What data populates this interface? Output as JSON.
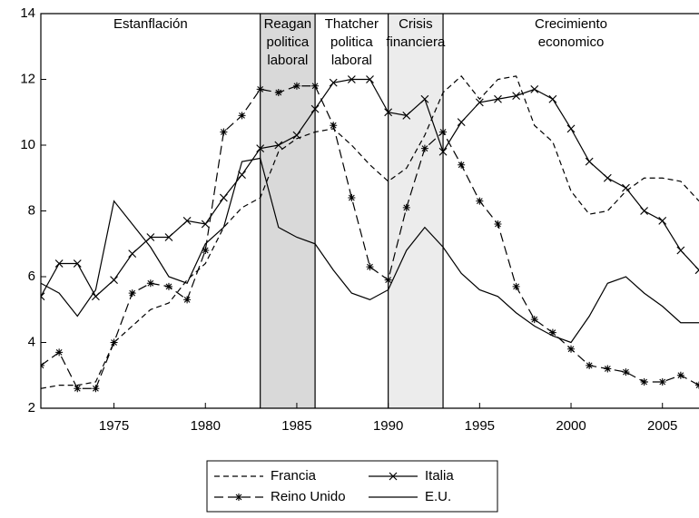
{
  "chart_data": {
    "type": "line",
    "x": [
      1971,
      1972,
      1973,
      1974,
      1975,
      1976,
      1977,
      1978,
      1979,
      1980,
      1981,
      1982,
      1983,
      1984,
      1985,
      1986,
      1987,
      1988,
      1989,
      1990,
      1991,
      1992,
      1993,
      1994,
      1995,
      1996,
      1997,
      1998,
      1999,
      2000,
      2001,
      2002,
      2003,
      2004,
      2005,
      2006,
      2007
    ],
    "series": [
      {
        "name": "Francia",
        "color": "#000000",
        "dash": "6,4",
        "marker": "none",
        "values": [
          2.6,
          2.7,
          2.7,
          2.8,
          4.0,
          4.5,
          5.0,
          5.2,
          5.9,
          6.4,
          7.5,
          8.1,
          8.4,
          9.8,
          10.2,
          10.4,
          10.5,
          10.0,
          9.4,
          8.9,
          9.3,
          10.3,
          11.6,
          12.1,
          11.4,
          12.0,
          12.1,
          10.6,
          10.1,
          8.6,
          7.9,
          8.0,
          8.6,
          9.0,
          9.0,
          8.9,
          8.3
        ]
      },
      {
        "name": "Italia",
        "color": "#000000",
        "dash": "none",
        "marker": "x",
        "values": [
          5.4,
          6.4,
          6.4,
          5.4,
          5.9,
          6.7,
          7.2,
          7.2,
          7.7,
          7.6,
          8.4,
          9.1,
          9.9,
          10.0,
          10.3,
          11.1,
          11.9,
          12.0,
          12.0,
          11.0,
          10.9,
          11.4,
          9.8,
          10.7,
          11.3,
          11.4,
          11.5,
          11.7,
          11.4,
          10.5,
          9.5,
          9.0,
          8.7,
          8.0,
          7.7,
          6.8,
          6.2
        ]
      },
      {
        "name": "Reino Unido",
        "color": "#000000",
        "dash": "10,5",
        "marker": "star",
        "values": [
          3.3,
          3.7,
          2.6,
          2.6,
          4.0,
          5.5,
          5.8,
          5.7,
          5.3,
          6.8,
          10.4,
          10.9,
          11.7,
          11.6,
          11.8,
          11.8,
          10.6,
          8.4,
          6.3,
          5.9,
          8.1,
          9.9,
          10.4,
          9.4,
          8.3,
          7.6,
          5.7,
          4.7,
          4.3,
          3.8,
          3.3,
          3.2,
          3.1,
          2.8,
          2.8,
          3.0,
          2.7
        ]
      },
      {
        "name": "E.U.",
        "color": "#000000",
        "dash": "none",
        "marker": "none",
        "values": [
          5.8,
          5.5,
          4.8,
          5.6,
          8.3,
          7.6,
          6.9,
          6.0,
          5.8,
          7.0,
          7.5,
          9.5,
          9.6,
          7.5,
          7.2,
          7.0,
          6.2,
          5.5,
          5.3,
          5.6,
          6.8,
          7.5,
          6.9,
          6.1,
          5.6,
          5.4,
          4.9,
          4.5,
          4.2,
          4.0,
          4.8,
          5.8,
          6.0,
          5.5,
          5.1,
          4.6,
          4.6
        ]
      }
    ],
    "xlim": [
      1971,
      2007
    ],
    "xticks": [
      1975,
      1980,
      1985,
      1990,
      1995,
      2000,
      2005
    ],
    "ylim": [
      2,
      14
    ],
    "yticks": [
      2,
      4,
      6,
      8,
      10,
      12,
      14
    ],
    "period_bounds": [
      1983,
      1986,
      1990,
      1993
    ],
    "periods": [
      {
        "label": [
          "Estanflación"
        ]
      },
      {
        "label": [
          "Reagan",
          "politica",
          "laboral"
        ],
        "shade": "#d9d9d9"
      },
      {
        "label": [
          "Thatcher",
          "politica",
          "laboral"
        ]
      },
      {
        "label": [
          "Crisis",
          "financiera"
        ],
        "shade": "#ececec"
      },
      {
        "label": [
          "Crecimiento",
          "economico"
        ]
      }
    ],
    "legend": "bottom"
  }
}
